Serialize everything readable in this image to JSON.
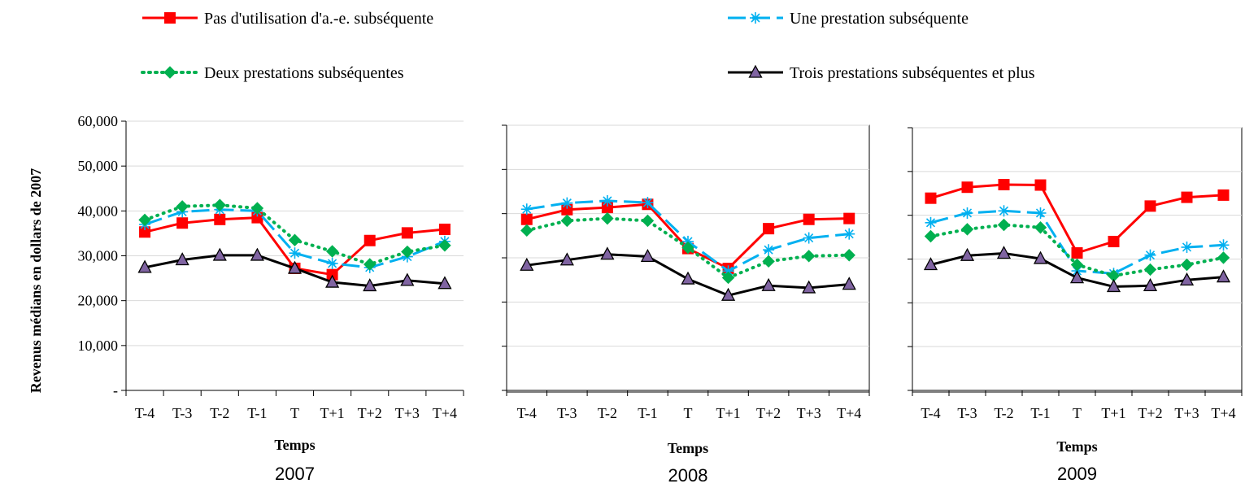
{
  "ylabel": "Revenus médians en dollars de 2007",
  "legend": [
    {
      "key": "none",
      "label": "Pas d'utilisation d'a.-e. subséquente",
      "color": "#ff0000",
      "marker": "square",
      "dash": "solid"
    },
    {
      "key": "one",
      "label": "Une prestation subséquente",
      "color": "#00b0f0",
      "marker": "asterisk",
      "dash": "longdash"
    },
    {
      "key": "two",
      "label": "Deux prestations subséquentes",
      "color": "#00b050",
      "marker": "diamond",
      "dash": "dotted"
    },
    {
      "key": "three",
      "label": "Trois prestations subséquentes et plus",
      "color": "#000000",
      "marker": "triangle",
      "dash": "solid"
    }
  ],
  "y_ticks": [
    "-",
    "10,000",
    "20,000",
    "30,000",
    "40,000",
    "50,000",
    "60,000"
  ],
  "chart_data": [
    {
      "type": "line",
      "title": "2007",
      "xlabel": "Temps",
      "ylabel": "Revenus médians en dollars de 2007",
      "categories": [
        "T-4",
        "T-3",
        "T-2",
        "T-1",
        "T",
        "T+1",
        "T+2",
        "T+3",
        "T+4"
      ],
      "ylim": [
        0,
        60000
      ],
      "grid": true,
      "series": [
        {
          "name": "Pas d'utilisation d'a.-e. subséquente",
          "values": [
            35300,
            37300,
            38100,
            38500,
            27200,
            25800,
            33400,
            35100,
            35900
          ]
        },
        {
          "name": "Une prestation subséquente",
          "values": [
            37000,
            39800,
            40300,
            40000,
            30600,
            28300,
            27400,
            29800,
            33200
          ]
        },
        {
          "name": "Deux prestations subséquentes",
          "values": [
            38000,
            41000,
            41300,
            40600,
            33500,
            31000,
            28100,
            30900,
            32300
          ]
        },
        {
          "name": "Trois prestations subséquentes et plus",
          "values": [
            27400,
            29100,
            30100,
            30100,
            27200,
            24100,
            23300,
            24500,
            23800
          ]
        }
      ]
    },
    {
      "type": "line",
      "title": "2008",
      "xlabel": "Temps",
      "categories": [
        "T-4",
        "T-3",
        "T-2",
        "T-1",
        "T",
        "T+1",
        "T+2",
        "T+3",
        "T+4"
      ],
      "ylim": [
        0,
        60000
      ],
      "grid": true,
      "series": [
        {
          "name": "Pas d'utilisation d'a.-e. subséquente",
          "values": [
            38700,
            40900,
            41400,
            42100,
            32100,
            27600,
            36600,
            38700,
            38900
          ]
        },
        {
          "name": "Une prestation subséquente",
          "values": [
            41000,
            42400,
            42900,
            42500,
            33700,
            27000,
            31800,
            34500,
            35400
          ]
        },
        {
          "name": "Deux prestations subséquentes",
          "values": [
            36200,
            38400,
            38900,
            38400,
            32300,
            25500,
            29200,
            30400,
            30600
          ]
        },
        {
          "name": "Trois prestations subséquentes et plus",
          "values": [
            28300,
            29500,
            30800,
            30300,
            25200,
            21500,
            23700,
            23200,
            24000
          ]
        }
      ]
    },
    {
      "type": "line",
      "title": "2009",
      "xlabel": "Temps",
      "categories": [
        "T-4",
        "T-3",
        "T-2",
        "T-1",
        "T",
        "T+1",
        "T+2",
        "T+3",
        "T+4"
      ],
      "ylim": [
        0,
        60000
      ],
      "grid": true,
      "series": [
        {
          "name": "Pas d'utilisation d'a.-e. subséquente",
          "values": [
            43900,
            46400,
            47000,
            46900,
            31400,
            34000,
            42100,
            44100,
            44600
          ]
        },
        {
          "name": "Une prestation subséquente",
          "values": [
            38300,
            40500,
            41000,
            40500,
            27300,
            26700,
            30900,
            32700,
            33200
          ]
        },
        {
          "name": "Deux prestations subséquentes",
          "values": [
            35200,
            36800,
            37800,
            37200,
            28700,
            26200,
            27600,
            28700,
            30300
          ]
        },
        {
          "name": "Trois prestations subséquentes et plus",
          "values": [
            28700,
            30800,
            31300,
            30100,
            25700,
            23700,
            23900,
            25200,
            25900
          ]
        }
      ]
    }
  ]
}
